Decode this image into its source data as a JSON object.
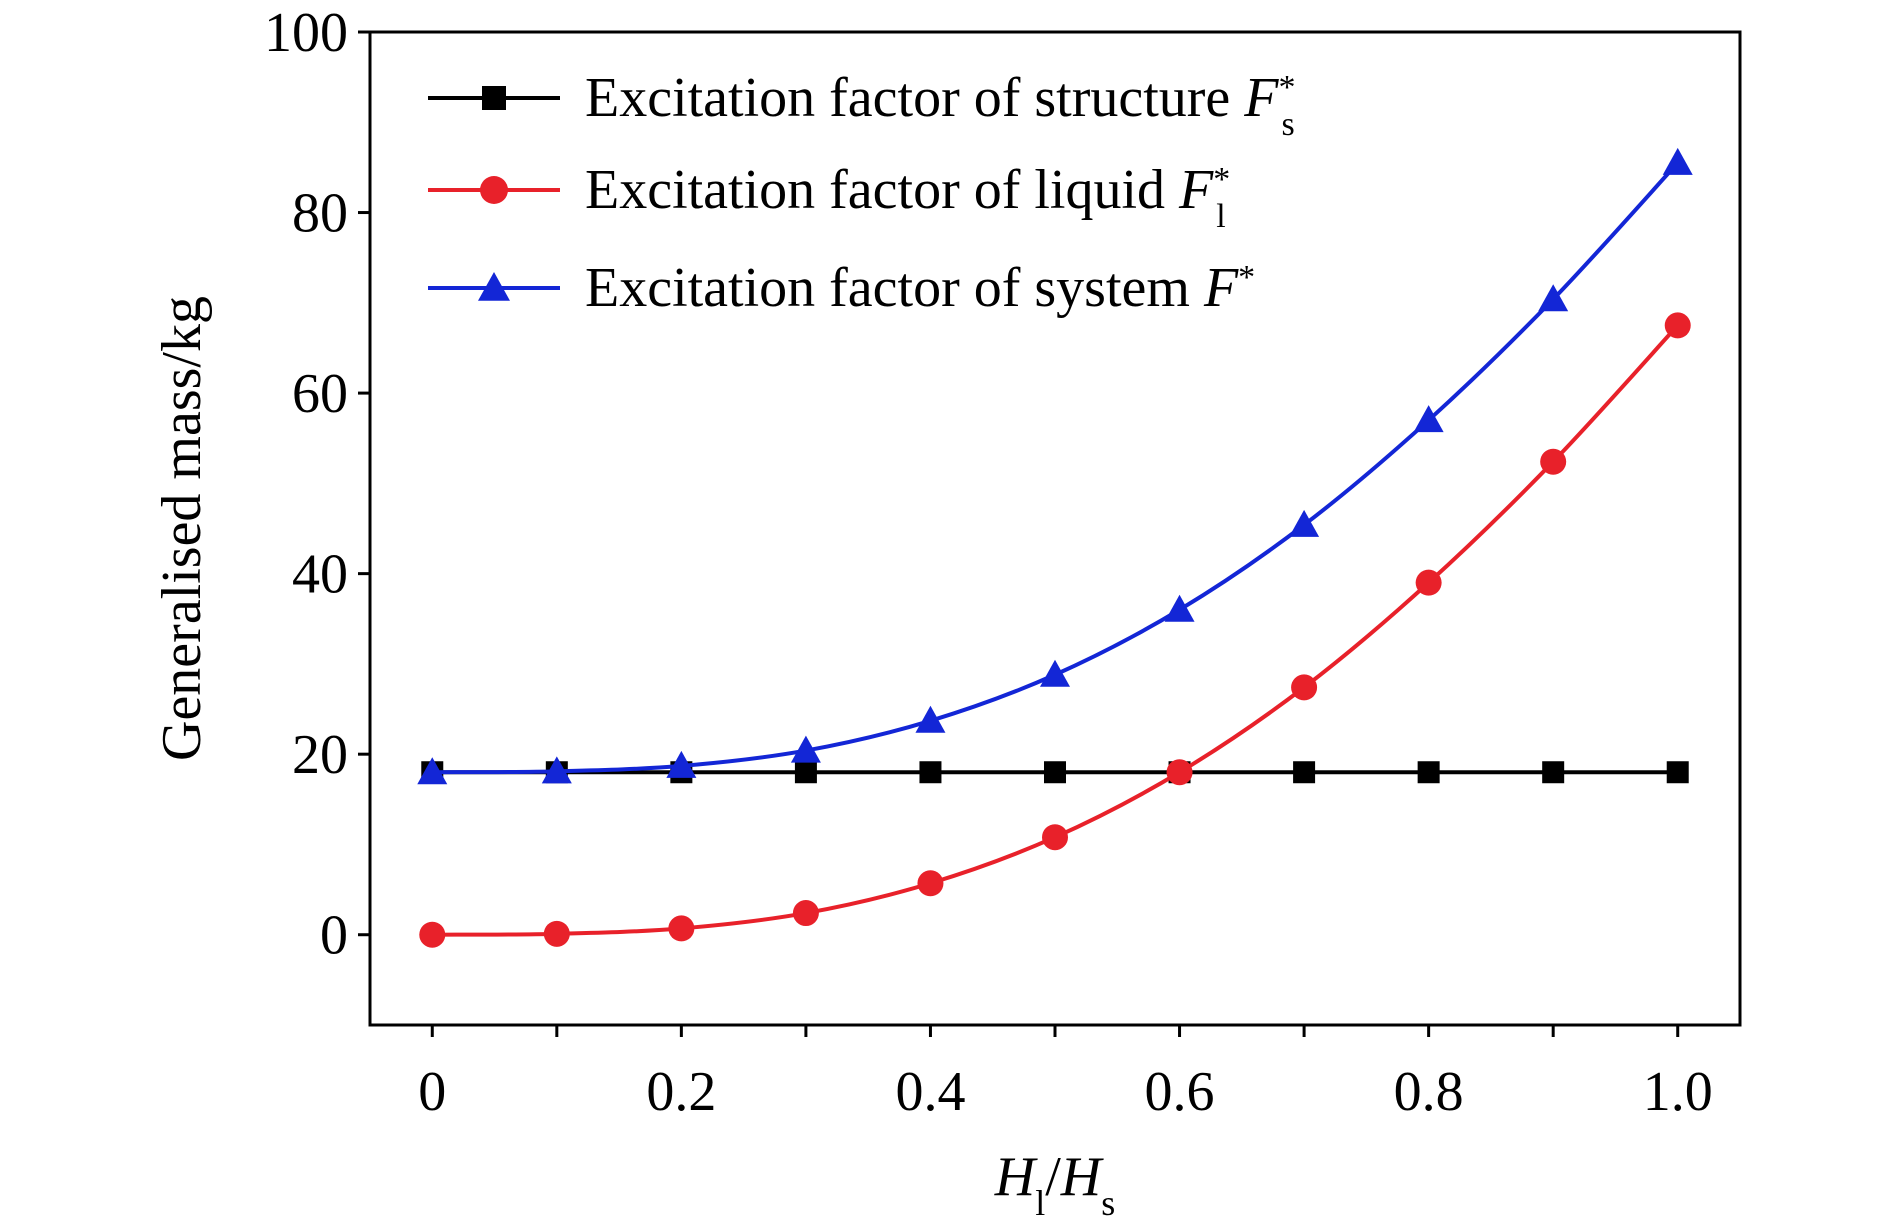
{
  "chart_data": {
    "type": "line",
    "title": "",
    "xlabel": {
      "main": "H",
      "sub1": "l",
      "sep": "/",
      "main2": "H",
      "sub2": "s"
    },
    "ylabel": "Generalised mass/kg",
    "xlim": [
      -0.05,
      1.05
    ],
    "ylim": [
      -10,
      100
    ],
    "xticks": [
      0,
      0.1,
      0.2,
      0.3,
      0.4,
      0.5,
      0.6,
      0.7,
      0.8,
      0.9,
      1.0
    ],
    "xtick_labels": [
      "0",
      "0.2",
      "0.4",
      "0.6",
      "0.8",
      "1.0"
    ],
    "xtick_label_values": [
      0,
      0.2,
      0.4,
      0.6,
      0.8,
      1.0
    ],
    "yticks": [
      0,
      20,
      40,
      60,
      80,
      100
    ],
    "ytick_labels": [
      "0",
      "20",
      "40",
      "60",
      "80",
      "100"
    ],
    "legend_position": "top-left",
    "grid": false,
    "x": [
      0,
      0.1,
      0.2,
      0.3,
      0.4,
      0.5,
      0.6,
      0.7,
      0.8,
      0.9,
      1.0
    ],
    "series": [
      {
        "name": "Excitation factor of structure ",
        "symbol": "F",
        "symbol_sup": "*",
        "symbol_sub": "s",
        "color": "#000000",
        "marker": "square",
        "values": [
          18,
          18,
          18,
          18,
          18,
          18,
          18,
          18,
          18,
          18,
          18
        ]
      },
      {
        "name": "Excitation factor of liquid ",
        "symbol": "F",
        "symbol_sup": "*",
        "symbol_sub": "l",
        "color": "#e8212a",
        "marker": "circle",
        "values": [
          0,
          0.1,
          0.7,
          2.4,
          5.7,
          10.8,
          18.0,
          27.4,
          39.0,
          52.4,
          67.5
        ]
      },
      {
        "name": "Excitation factor of system ",
        "symbol": "F",
        "symbol_sup": "*",
        "symbol_sub": "",
        "color": "#1326d6",
        "marker": "triangle",
        "values": [
          18,
          18.1,
          18.7,
          20.4,
          23.7,
          28.8,
          36.0,
          45.4,
          57.0,
          70.4,
          85.5
        ]
      }
    ]
  }
}
